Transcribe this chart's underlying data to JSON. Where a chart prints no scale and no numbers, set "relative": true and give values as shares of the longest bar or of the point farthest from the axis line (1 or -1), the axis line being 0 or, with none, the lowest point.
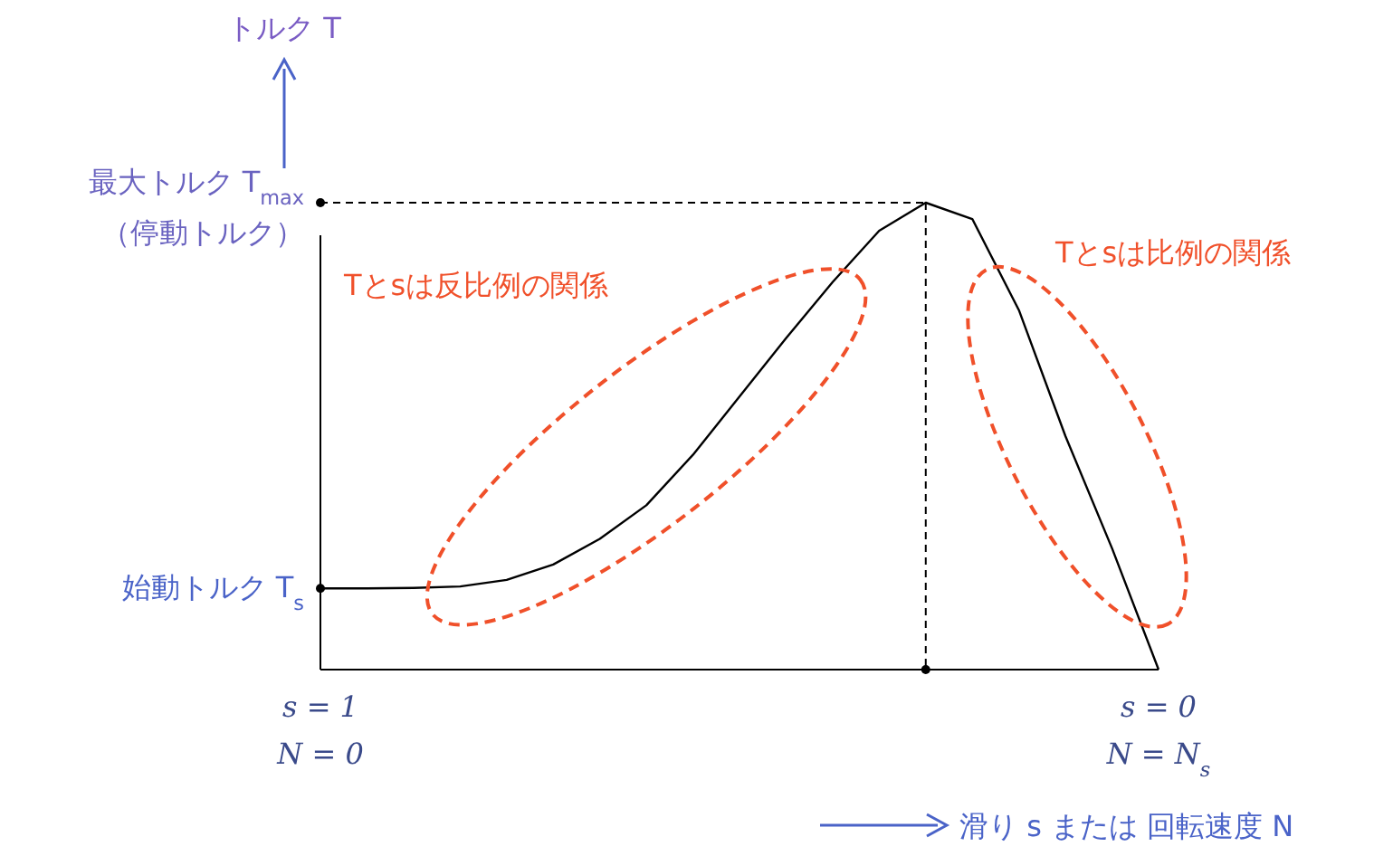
{
  "chart_data": {
    "type": "line",
    "relative": true,
    "categories": [
      "s = 1\nN = 0",
      null,
      null,
      null,
      null,
      null,
      null,
      null,
      null,
      null,
      null,
      null,
      null,
      null,
      null,
      null,
      null,
      null,
      "s = 0\nN = N$_{s}$"
    ],
    "series": [
      {
        "color": "#000000",
        "values": [
          0.174,
          0.174,
          0.175,
          0.178,
          0.192,
          0.225,
          0.28,
          0.352,
          0.46,
          0.585,
          0.71,
          0.83,
          0.94,
          1,
          0.965,
          0.77,
          0.5,
          0.26,
          0
        ]
      },
      {
        "type": "scatter",
        "color": "#000000",
        "values": [
          1,
          null,
          null,
          null,
          null,
          null,
          null,
          null,
          null,
          null,
          null,
          null,
          null,
          0,
          null,
          null,
          null,
          null,
          null
        ]
      }
    ],
    "xlabel": "滑り s または 回転速度 N",
    "annotations": [
      "Tとsは反比例の関係",
      "Tとsは比例の関係",
      "トルク T",
      "最大トルク T$_{max}$\n（停動トルク）",
      "始動トルク T$_{s}$"
    ]
  }
}
